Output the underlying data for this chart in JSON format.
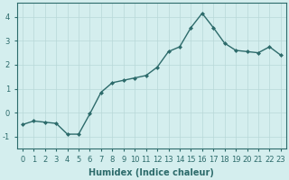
{
  "x": [
    0,
    1,
    2,
    3,
    4,
    5,
    6,
    7,
    8,
    9,
    10,
    11,
    12,
    13,
    14,
    15,
    16,
    17,
    18,
    19,
    20,
    21,
    22,
    23
  ],
  "y": [
    -0.5,
    -0.35,
    -0.4,
    -0.45,
    -0.9,
    -0.9,
    -0.05,
    0.85,
    1.25,
    1.35,
    1.45,
    1.55,
    1.9,
    2.55,
    2.75,
    3.55,
    4.15,
    3.55,
    2.9,
    2.6,
    2.55,
    2.5,
    2.75,
    2.4
  ],
  "line_color": "#2d6b6b",
  "marker": "D",
  "marker_size": 2,
  "bg_color": "#d4eeee",
  "grid_color": "#b8d8d8",
  "xlabel": "Humidex (Indice chaleur)",
  "xlim": [
    -0.5,
    23.5
  ],
  "ylim": [
    -1.5,
    4.6
  ],
  "yticks": [
    -1,
    0,
    1,
    2,
    3,
    4
  ],
  "xticks": [
    0,
    1,
    2,
    3,
    4,
    5,
    6,
    7,
    8,
    9,
    10,
    11,
    12,
    13,
    14,
    15,
    16,
    17,
    18,
    19,
    20,
    21,
    22,
    23
  ],
  "label_fontsize": 7,
  "tick_fontsize": 6,
  "line_width": 1.0
}
